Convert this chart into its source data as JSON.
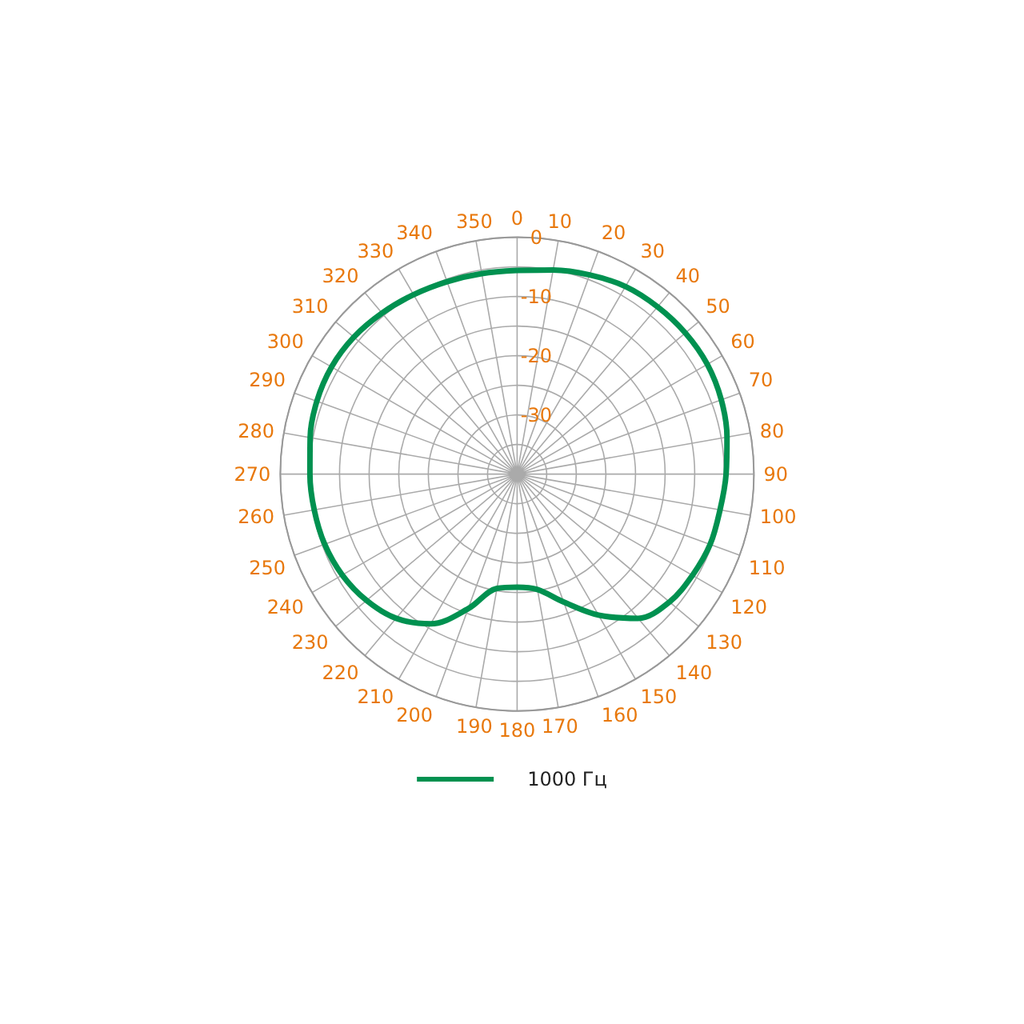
{
  "chart_data": {
    "type": "radar",
    "categories": [
      "0",
      "10",
      "20",
      "30",
      "40",
      "50",
      "60",
      "70",
      "80",
      "90",
      "100",
      "110",
      "120",
      "130",
      "140",
      "150",
      "160",
      "170",
      "180",
      "190",
      "200",
      "210",
      "220",
      "230",
      "240",
      "250",
      "260",
      "270",
      "280",
      "290",
      "300",
      "310",
      "320",
      "330",
      "340",
      "350"
    ],
    "series": [
      {
        "name": "1000 Гц",
        "color": "#009150",
        "values": [
          -5.6,
          -5.0,
          -4.2,
          -3.4,
          -3.1,
          -2.9,
          -2.9,
          -3.3,
          -4.0,
          -4.7,
          -5.2,
          -5.3,
          -5.8,
          -6.4,
          -8.2,
          -12.5,
          -17,
          -20.2,
          -20.9,
          -20.4,
          -15.8,
          -10.8,
          -8.2,
          -6.8,
          -5.9,
          -5.4,
          -5.2,
          -5.0,
          -4.5,
          -4.0,
          -3.8,
          -4.0,
          -4.5,
          -5.0,
          -5.4,
          -5.6
        ]
      }
    ],
    "ylim": [
      -40,
      0
    ],
    "yticks": [
      -30,
      -20,
      -10,
      0
    ],
    "grid": true,
    "legend": "bottom",
    "marker": "none",
    "line_style": "solid"
  }
}
